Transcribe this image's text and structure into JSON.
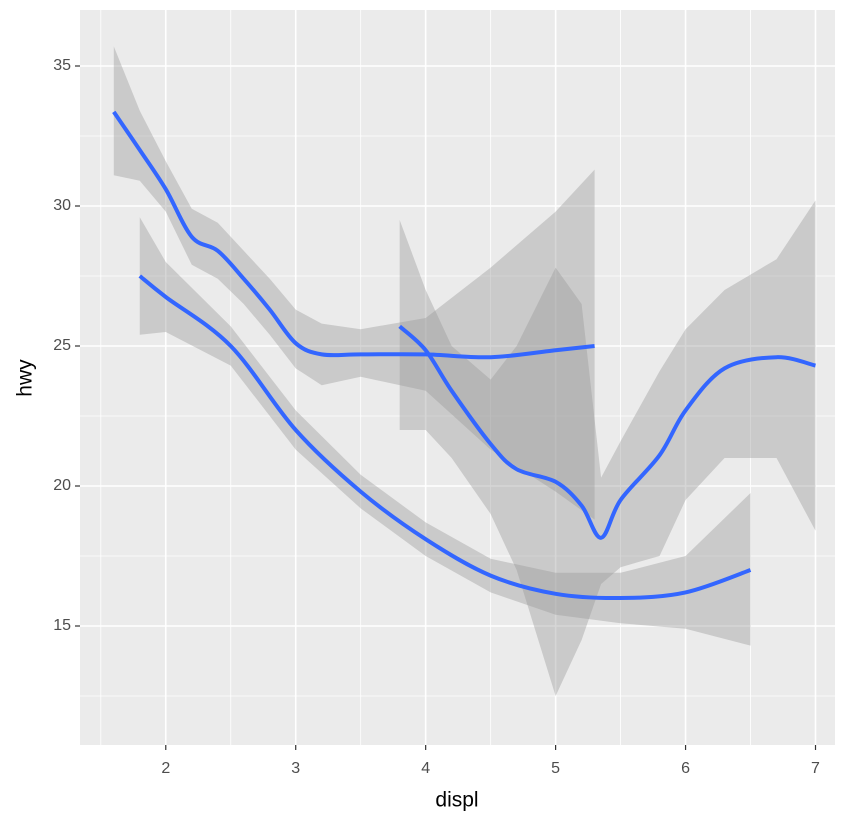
{
  "chart_data": {
    "type": "smooth",
    "x_label": "displ",
    "y_label": "hwy",
    "xlim": [
      1.34,
      7.15
    ],
    "ylim": [
      10.75,
      37
    ],
    "xticks": [
      2,
      3,
      4,
      5,
      6,
      7
    ],
    "yticks": [
      15,
      20,
      25,
      30,
      35
    ],
    "grid": true,
    "band_color": "#999999",
    "band_opacity": 0.4,
    "series": [
      {
        "color": "#3366ff",
        "x": [
          1.6,
          1.8,
          2.0,
          2.2,
          2.4,
          2.6,
          2.8,
          3.0,
          3.2,
          3.5,
          4.0,
          4.5,
          5.0,
          5.3
        ],
        "values": [
          33.36,
          32.0,
          30.6,
          28.9,
          28.4,
          27.4,
          26.3,
          25.1,
          24.7,
          24.7,
          24.7,
          24.6,
          24.85,
          25.0
        ],
        "lower": [
          31.1,
          30.9,
          29.8,
          27.9,
          27.4,
          26.5,
          25.4,
          24.2,
          23.6,
          23.9,
          23.4,
          21.3,
          19.8,
          18.8
        ],
        "upper": [
          35.7,
          33.4,
          31.6,
          29.9,
          29.4,
          28.4,
          27.4,
          26.3,
          25.8,
          25.6,
          26.0,
          27.8,
          29.8,
          31.3
        ]
      },
      {
        "color": "#3366ff",
        "x": [
          1.8,
          2.0,
          2.5,
          3.0,
          3.5,
          4.0,
          4.5,
          5.0,
          5.5,
          6.0,
          6.5
        ],
        "values": [
          27.5,
          26.75,
          25.0,
          22.0,
          19.8,
          18.1,
          16.8,
          16.15,
          16.0,
          16.2,
          17.0
        ],
        "lower": [
          25.4,
          25.5,
          24.3,
          21.3,
          19.2,
          17.5,
          16.2,
          15.4,
          15.1,
          14.9,
          14.3
        ],
        "upper": [
          29.6,
          28.0,
          25.7,
          22.7,
          20.4,
          18.7,
          17.4,
          16.9,
          16.9,
          17.5,
          19.75
        ]
      },
      {
        "color": "#3366ff",
        "x": [
          3.8,
          4.0,
          4.2,
          4.5,
          4.7,
          5.0,
          5.2,
          5.35,
          5.5,
          5.8,
          6.0,
          6.3,
          6.7,
          7.0
        ],
        "values": [
          25.7,
          24.85,
          23.4,
          21.5,
          20.6,
          20.15,
          19.3,
          18.15,
          19.5,
          21.1,
          22.7,
          24.2,
          24.6,
          24.3
        ],
        "lower": [
          22.0,
          22.0,
          21.0,
          19.0,
          17.0,
          12.5,
          14.5,
          16.5,
          17.1,
          17.5,
          19.5,
          21.0,
          21.0,
          18.4
        ],
        "upper": [
          29.5,
          27.0,
          25.0,
          23.8,
          25.0,
          27.8,
          26.5,
          20.3,
          21.6,
          24.1,
          25.6,
          27.0,
          28.1,
          30.2
        ]
      }
    ]
  }
}
